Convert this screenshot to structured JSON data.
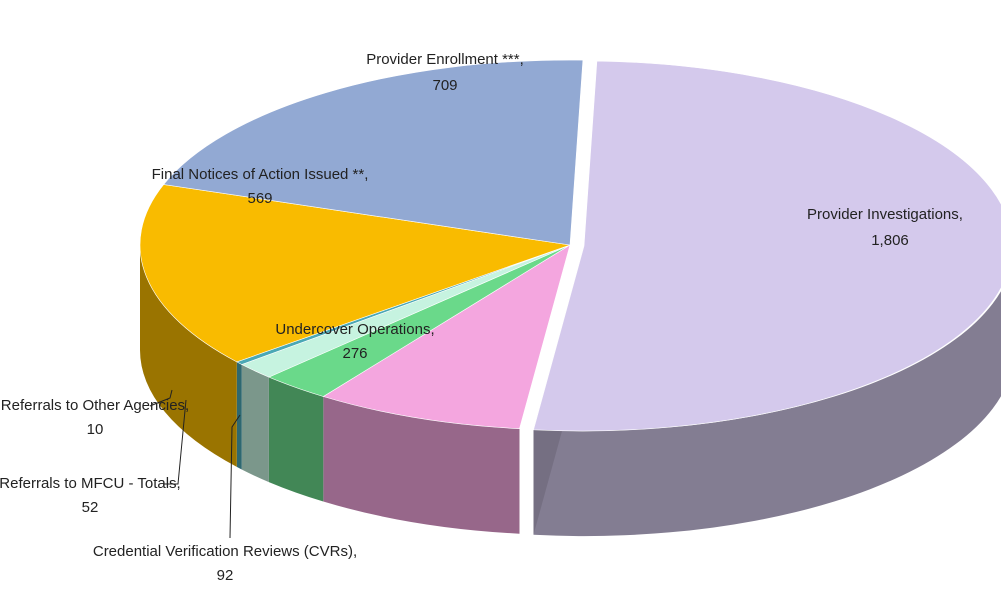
{
  "chart_data": {
    "type": "pie3d",
    "categories": [
      "Provider Investigations,",
      "Undercover Operations,",
      "Credential Verification Reviews (CVRs),",
      "Referrals to MFCU - Totals,",
      "Referrals to Other Agencies,",
      "Final Notices of Action Issued **,",
      "Provider Enrollment ***,"
    ],
    "values": [
      1806,
      276,
      92,
      52,
      10,
      569,
      709
    ],
    "value_labels": [
      "1,806",
      "276",
      "92",
      "52",
      "10",
      "569",
      "709"
    ],
    "colors": [
      "#d4c9ec",
      "#f4a6df",
      "#6ad98a",
      "#c6f3e0",
      "#4aa8b5",
      "#f9bb00",
      "#92a9d3"
    ]
  }
}
